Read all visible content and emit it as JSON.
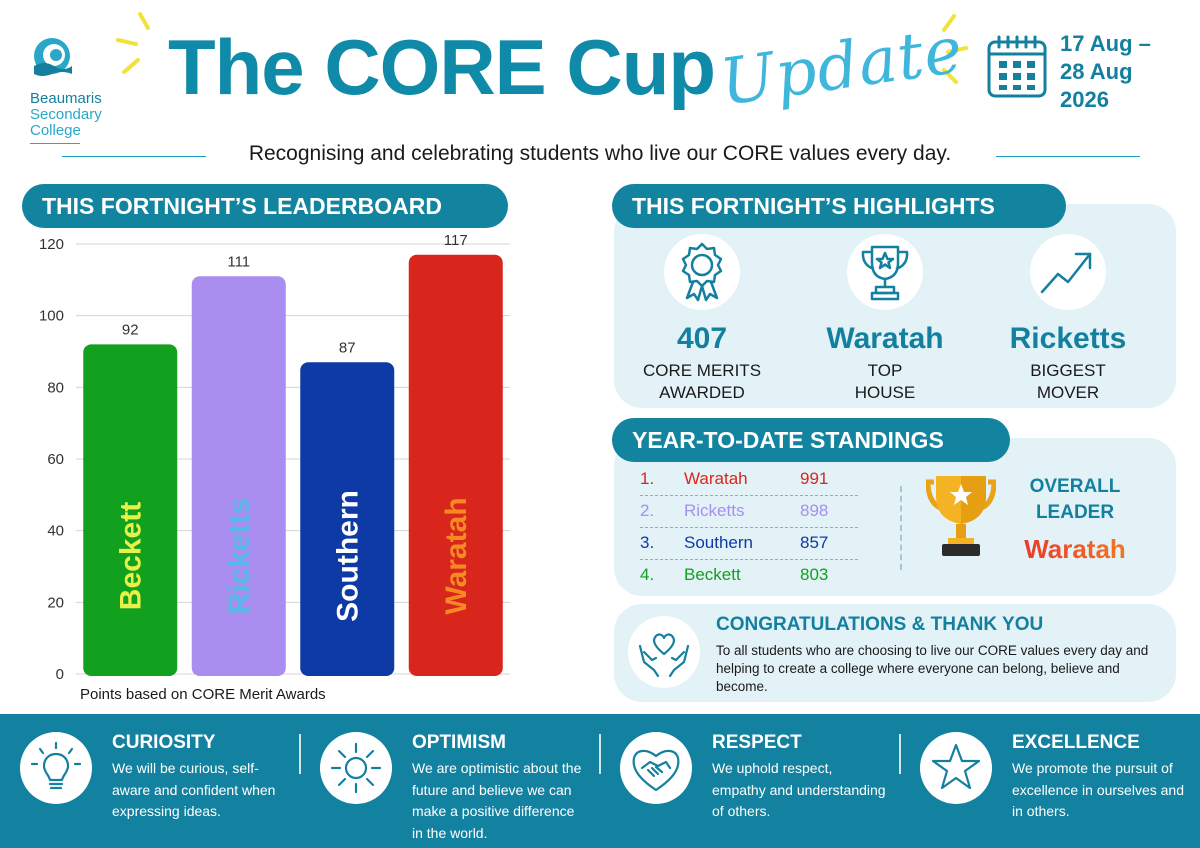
{
  "logo": {
    "line1": "Beaumaris",
    "line2": "Secondary",
    "line3": "College"
  },
  "header": {
    "title": "The CORE Cup",
    "update": "Update",
    "date_line1": "17 Aug –",
    "date_line2": "28 Aug",
    "date_line3": "2026",
    "subtitle": "Recognising and celebrating students who live our CORE values every day."
  },
  "leaderboard": {
    "heading": "THIS FORTNIGHT’S LEADERBOARD",
    "note": "Points based on CORE Merit Awards"
  },
  "chart_data": {
    "type": "bar",
    "categories": [
      "Beckett",
      "Ricketts",
      "Southern",
      "Waratah"
    ],
    "values": [
      92,
      111,
      87,
      117
    ],
    "colors": [
      "#12a01f",
      "#a98ef0",
      "#0e3aa6",
      "#d9261c"
    ],
    "label_colors": [
      "#e8f04a",
      "#58b8e8",
      "#ffffff",
      "#f58a22"
    ],
    "ylim": [
      0,
      120
    ],
    "yticks": [
      0,
      20,
      40,
      60,
      80,
      100,
      120
    ],
    "grid": true
  },
  "highlights": {
    "heading": "THIS FORTNIGHT’S  HIGHLIGHTS",
    "items": [
      {
        "icon": "award-rosette-icon",
        "value": "407",
        "label1": "CORE MERITS",
        "label2": "AWARDED"
      },
      {
        "icon": "trophy-icon",
        "value": "Waratah",
        "label1": "TOP",
        "label2": "HOUSE"
      },
      {
        "icon": "trend-up-icon",
        "value": "Ricketts",
        "label1": "BIGGEST",
        "label2": "MOVER"
      }
    ]
  },
  "standings": {
    "heading": "YEAR-TO-DATE STANDINGS",
    "rows": [
      {
        "rank": "1.",
        "name": "Waratah",
        "points": "991",
        "color": "#d9261c"
      },
      {
        "rank": "2.",
        "name": "Ricketts",
        "points": "898",
        "color": "#a98ef0"
      },
      {
        "rank": "3.",
        "name": "Southern",
        "points": "857",
        "color": "#0e3aa6"
      },
      {
        "rank": "4.",
        "name": "Beckett",
        "points": "803",
        "color": "#12a01f"
      }
    ],
    "overall_label1": "OVERALL",
    "overall_label2": "LEADER",
    "overall_name": "Waratah"
  },
  "congrats": {
    "title": "CONGRATULATIONS & THANK YOU",
    "text": "To all students who are choosing to live our CORE values every day and helping to create a college where everyone can belong, believe and become."
  },
  "values": [
    {
      "icon": "lightbulb-icon",
      "title": "CURIOSITY",
      "text": "We will be curious, self-aware and confident when expressing ideas."
    },
    {
      "icon": "sun-icon",
      "title": "OPTIMISM",
      "text": "We are optimistic about the future and believe we can make a positive difference in the world."
    },
    {
      "icon": "handshake-heart-icon",
      "title": "RESPECT",
      "text": "We uphold respect, empathy and understanding of others."
    },
    {
      "icon": "star-icon",
      "title": "EXCELLENCE",
      "text": "We promote the pursuit of excellence in ourselves and in others."
    }
  ]
}
